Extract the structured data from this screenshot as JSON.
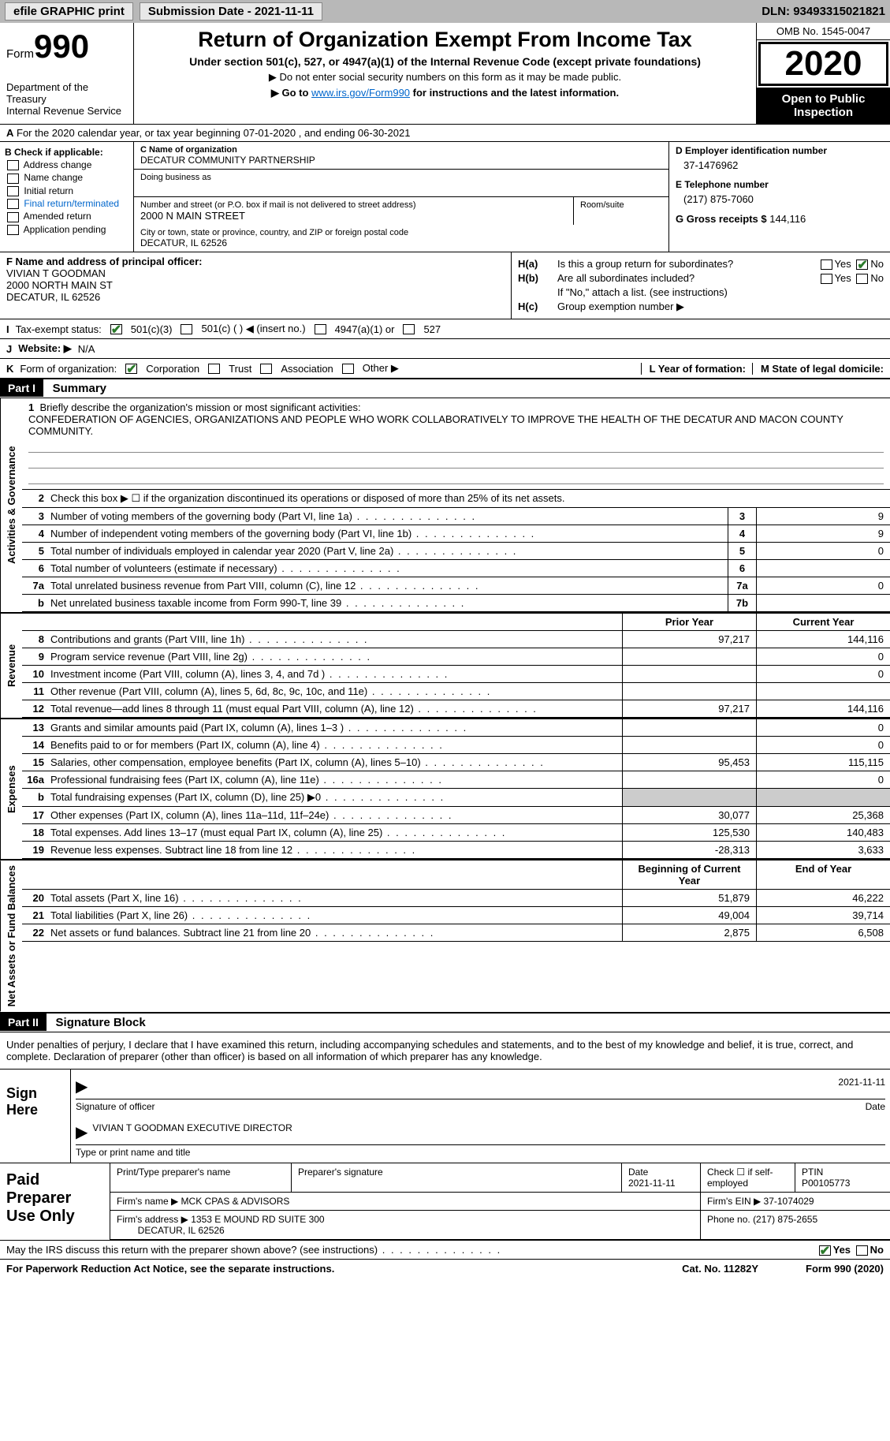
{
  "topbar": {
    "efile": "efile GRAPHIC print",
    "submission_label": "Submission Date - 2021-11-11",
    "dln": "DLN: 93493315021821"
  },
  "header": {
    "form_prefix": "Form",
    "form_number": "990",
    "dept": "Department of the Treasury\nInternal Revenue Service",
    "title": "Return of Organization Exempt From Income Tax",
    "subtitle": "Under section 501(c), 527, or 4947(a)(1) of the Internal Revenue Code (except private foundations)",
    "note1": "▶ Do not enter social security numbers on this form as it may be made public.",
    "note2_pre": "▶ Go to ",
    "note2_link": "www.irs.gov/Form990",
    "note2_post": " for instructions and the latest information.",
    "omb": "OMB No. 1545-0047",
    "year": "2020",
    "inspection": "Open to Public Inspection"
  },
  "row_a": "For the 2020 calendar year, or tax year beginning 07-01-2020   , and ending 06-30-2021",
  "box_b": {
    "title": "B Check if applicable:",
    "items": [
      "Address change",
      "Name change",
      "Initial return",
      "Final return/terminated",
      "Amended return",
      "Application pending"
    ]
  },
  "box_c": {
    "name_label": "C Name of organization",
    "name": "DECATUR COMMUNITY PARTNERSHIP",
    "dba_label": "Doing business as",
    "addr_label": "Number and street (or P.O. box if mail is not delivered to street address)",
    "room_label": "Room/suite",
    "addr": "2000 N MAIN STREET",
    "city_label": "City or town, state or province, country, and ZIP or foreign postal code",
    "city": "DECATUR, IL  62526"
  },
  "box_d": {
    "ein_label": "D Employer identification number",
    "ein": "37-1476962",
    "phone_label": "E Telephone number",
    "phone": "(217) 875-7060",
    "gross_label": "G Gross receipts $",
    "gross": "144,116"
  },
  "box_f": {
    "label": "F  Name and address of principal officer:",
    "name": "VIVIAN T GOODMAN",
    "addr1": "2000 NORTH MAIN ST",
    "addr2": "DECATUR, IL  62526"
  },
  "box_h": {
    "ha_label": "H(a)",
    "ha_q": "Is this a group return for subordinates?",
    "hb_label": "H(b)",
    "hb_q": "Are all subordinates included?",
    "hb_note": "If \"No,\" attach a list. (see instructions)",
    "hc_label": "H(c)",
    "hc_q": "Group exemption number ▶",
    "yes": "Yes",
    "no": "No"
  },
  "line_i": {
    "label": "I",
    "text": "Tax-exempt status:",
    "opts": [
      "501(c)(3)",
      "501(c) (  ) ◀ (insert no.)",
      "4947(a)(1) or",
      "527"
    ]
  },
  "line_j": {
    "label": "J",
    "text": "Website: ▶",
    "val": "N/A"
  },
  "line_k": {
    "label": "K",
    "text": "Form of organization:",
    "opts": [
      "Corporation",
      "Trust",
      "Association",
      "Other ▶"
    ],
    "l_label": "L Year of formation:",
    "m_label": "M State of legal domicile:"
  },
  "part1": {
    "hdr": "Part I",
    "title": "Summary",
    "mission_label": "Briefly describe the organization's mission or most significant activities:",
    "mission": "CONFEDERATION OF AGENCIES, ORGANIZATIONS AND PEOPLE WHO WORK COLLABORATIVELY TO IMPROVE THE HEALTH OF THE DECATUR AND MACON COUNTY COMMUNITY.",
    "line2": "Check this box ▶ ☐  if the organization discontinued its operations or disposed of more than 25% of its net assets.",
    "prior_year": "Prior Year",
    "current_year": "Current Year",
    "begin_year": "Beginning of Current Year",
    "end_year": "End of Year"
  },
  "gov_rows": [
    {
      "n": "1",
      "t": "Briefly describe the organization's mission or most significant activities:"
    },
    {
      "n": "3",
      "t": "Number of voting members of the governing body (Part VI, line 1a)",
      "box": "3",
      "v": "9"
    },
    {
      "n": "4",
      "t": "Number of independent voting members of the governing body (Part VI, line 1b)",
      "box": "4",
      "v": "9"
    },
    {
      "n": "5",
      "t": "Total number of individuals employed in calendar year 2020 (Part V, line 2a)",
      "box": "5",
      "v": "0"
    },
    {
      "n": "6",
      "t": "Total number of volunteers (estimate if necessary)",
      "box": "6",
      "v": ""
    },
    {
      "n": "7a",
      "t": "Total unrelated business revenue from Part VIII, column (C), line 12",
      "box": "7a",
      "v": "0"
    },
    {
      "n": "b",
      "t": "Net unrelated business taxable income from Form 990-T, line 39",
      "box": "7b",
      "v": ""
    }
  ],
  "rev_rows": [
    {
      "n": "8",
      "t": "Contributions and grants (Part VIII, line 1h)",
      "p": "97,217",
      "c": "144,116"
    },
    {
      "n": "9",
      "t": "Program service revenue (Part VIII, line 2g)",
      "p": "",
      "c": "0"
    },
    {
      "n": "10",
      "t": "Investment income (Part VIII, column (A), lines 3, 4, and 7d )",
      "p": "",
      "c": "0"
    },
    {
      "n": "11",
      "t": "Other revenue (Part VIII, column (A), lines 5, 6d, 8c, 9c, 10c, and 11e)",
      "p": "",
      "c": ""
    },
    {
      "n": "12",
      "t": "Total revenue—add lines 8 through 11 (must equal Part VIII, column (A), line 12)",
      "p": "97,217",
      "c": "144,116"
    }
  ],
  "exp_rows": [
    {
      "n": "13",
      "t": "Grants and similar amounts paid (Part IX, column (A), lines 1–3 )",
      "p": "",
      "c": "0"
    },
    {
      "n": "14",
      "t": "Benefits paid to or for members (Part IX, column (A), line 4)",
      "p": "",
      "c": "0"
    },
    {
      "n": "15",
      "t": "Salaries, other compensation, employee benefits (Part IX, column (A), lines 5–10)",
      "p": "95,453",
      "c": "115,115"
    },
    {
      "n": "16a",
      "t": "Professional fundraising fees (Part IX, column (A), line 11e)",
      "p": "",
      "c": "0"
    },
    {
      "n": "b",
      "t": "Total fundraising expenses (Part IX, column (D), line 25) ▶0",
      "p": "gray",
      "c": "gray"
    },
    {
      "n": "17",
      "t": "Other expenses (Part IX, column (A), lines 11a–11d, 11f–24e)",
      "p": "30,077",
      "c": "25,368"
    },
    {
      "n": "18",
      "t": "Total expenses. Add lines 13–17 (must equal Part IX, column (A), line 25)",
      "p": "125,530",
      "c": "140,483"
    },
    {
      "n": "19",
      "t": "Revenue less expenses. Subtract line 18 from line 12",
      "p": "-28,313",
      "c": "3,633"
    }
  ],
  "na_rows": [
    {
      "n": "20",
      "t": "Total assets (Part X, line 16)",
      "p": "51,879",
      "c": "46,222"
    },
    {
      "n": "21",
      "t": "Total liabilities (Part X, line 26)",
      "p": "49,004",
      "c": "39,714"
    },
    {
      "n": "22",
      "t": "Net assets or fund balances. Subtract line 21 from line 20",
      "p": "2,875",
      "c": "6,508"
    }
  ],
  "vtabs": {
    "gov": "Activities & Governance",
    "rev": "Revenue",
    "exp": "Expenses",
    "na": "Net Assets or Fund Balances"
  },
  "part2": {
    "hdr": "Part II",
    "title": "Signature Block",
    "decl": "Under penalties of perjury, I declare that I have examined this return, including accompanying schedules and statements, and to the best of my knowledge and belief, it is true, correct, and complete. Declaration of preparer (other than officer) is based on all information of which preparer has any knowledge."
  },
  "sign": {
    "label": "Sign Here",
    "sig_label": "Signature of officer",
    "date_label": "Date",
    "date": "2021-11-11",
    "name": "VIVIAN T GOODMAN  EXECUTIVE DIRECTOR",
    "name_label": "Type or print name and title"
  },
  "prep": {
    "label": "Paid Preparer Use Only",
    "c1": "Print/Type preparer's name",
    "c2": "Preparer's signature",
    "c3": "Date",
    "c3v": "2021-11-11",
    "c4": "Check ☐ if self-employed",
    "c5": "PTIN",
    "c5v": "P00105773",
    "firm_label": "Firm's name    ▶",
    "firm": "MCK CPAS & ADVISORS",
    "ein_label": "Firm's EIN ▶",
    "ein": "37-1074029",
    "addr_label": "Firm's address ▶",
    "addr1": "1353 E MOUND RD SUITE 300",
    "addr2": "DECATUR, IL  62526",
    "phone_label": "Phone no.",
    "phone": "(217) 875-2655"
  },
  "footer": {
    "irs_q": "May the IRS discuss this return with the preparer shown above? (see instructions)",
    "yes": "Yes",
    "no": "No",
    "notice": "For Paperwork Reduction Act Notice, see the separate instructions.",
    "cat": "Cat. No. 11282Y",
    "form": "Form 990 (2020)"
  }
}
